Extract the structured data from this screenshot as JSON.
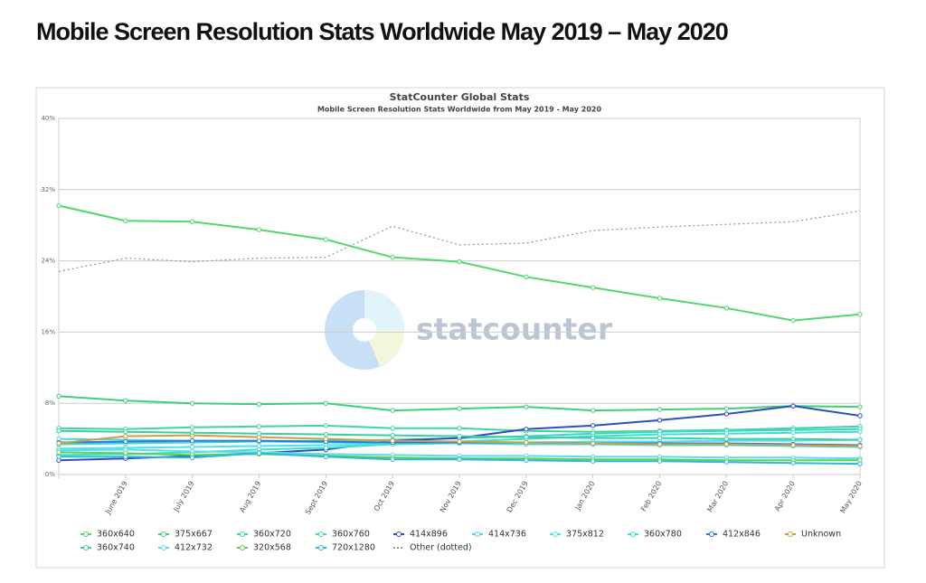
{
  "page_title": "Mobile Screen Resolution Stats Worldwide May 2019 – May 2020",
  "chart_data": {
    "type": "line",
    "title": "StatCounter Global Stats",
    "subtitle": "Mobile Screen Resolution Stats Worldwide from May 2019 - May 2020",
    "watermark": "statcounter",
    "categories": [
      null,
      "June 2019",
      "July 2019",
      "Aug 2019",
      "Sept 2019",
      "Oct 2019",
      "Nov 2019",
      "Dec 2019",
      "Jan 2020",
      "Feb 2020",
      "Mar 2020",
      "Apr 2020",
      "May 2020"
    ],
    "ylim": [
      0,
      40
    ],
    "yticks": [
      {
        "value": 0,
        "label": "0%"
      },
      {
        "value": 8,
        "label": "8%"
      },
      {
        "value": 16,
        "label": "16%"
      },
      {
        "value": 24,
        "label": "24%"
      },
      {
        "value": 32,
        "label": "32%"
      },
      {
        "value": 40,
        "label": "40%"
      }
    ],
    "grid": true,
    "legend": "bottom",
    "series": [
      {
        "name": "360x640",
        "color": "#4fd86c",
        "values": [
          30.2,
          28.5,
          28.4,
          27.5,
          26.4,
          24.4,
          23.9,
          22.2,
          21.0,
          19.8,
          18.7,
          17.3,
          18.0
        ]
      },
      {
        "name": "375x667",
        "color": "#3fcf7a",
        "values": [
          8.8,
          8.3,
          8.0,
          7.9,
          8.0,
          7.2,
          7.4,
          7.6,
          7.2,
          7.3,
          7.4,
          7.7,
          7.6
        ]
      },
      {
        "name": "360x720",
        "color": "#40d4a0",
        "values": [
          5.2,
          5.1,
          5.3,
          5.4,
          5.5,
          5.2,
          5.2,
          4.9,
          4.8,
          4.9,
          5.0,
          5.2,
          5.4
        ]
      },
      {
        "name": "360x760",
        "color": "#3fd6c4",
        "values": [
          3.4,
          3.5,
          3.6,
          3.7,
          3.8,
          3.9,
          4.1,
          4.3,
          4.6,
          4.8,
          4.9,
          5.0,
          5.1
        ]
      },
      {
        "name": "414x896",
        "color": "#2f4fc0",
        "values": [
          1.6,
          1.8,
          2.1,
          2.4,
          2.8,
          3.8,
          4.1,
          5.1,
          5.5,
          6.1,
          6.8,
          7.7,
          6.6
        ]
      },
      {
        "name": "414x736",
        "color": "#45d8e8",
        "values": [
          4.0,
          3.9,
          3.8,
          3.7,
          3.6,
          3.5,
          3.5,
          3.4,
          3.4,
          3.3,
          3.3,
          3.2,
          3.1
        ]
      },
      {
        "name": "375x812",
        "color": "#4ce0f0",
        "values": [
          2.9,
          3.0,
          3.1,
          3.2,
          3.3,
          3.4,
          3.5,
          3.6,
          3.7,
          3.7,
          3.8,
          3.8,
          3.9
        ]
      },
      {
        "name": "360x780",
        "color": "#3ee0c8",
        "values": [
          2.2,
          2.3,
          2.5,
          2.8,
          3.0,
          3.4,
          3.7,
          4.0,
          4.3,
          4.5,
          4.6,
          4.7,
          4.8
        ]
      },
      {
        "name": "412x846",
        "color": "#2b78e0",
        "values": [
          3.6,
          3.7,
          3.8,
          3.8,
          3.7,
          3.6,
          3.6,
          3.6,
          3.5,
          3.5,
          3.5,
          3.4,
          3.3
        ]
      },
      {
        "name": "Unknown",
        "color": "#c8a040",
        "values": [
          3.5,
          4.3,
          4.4,
          4.2,
          4.0,
          3.8,
          3.7,
          3.6,
          3.5,
          3.4,
          3.4,
          3.3,
          3.2
        ]
      },
      {
        "name": "360x740",
        "color": "#38cfa8",
        "values": [
          4.9,
          4.8,
          4.7,
          4.6,
          4.5,
          4.4,
          4.3,
          4.2,
          4.1,
          4.1,
          4.0,
          4.0,
          3.9
        ]
      },
      {
        "name": "412x732",
        "color": "#58dcf4",
        "values": [
          2.7,
          2.8,
          2.6,
          2.5,
          2.3,
          2.2,
          2.1,
          2.1,
          2.0,
          2.0,
          1.9,
          1.9,
          1.8
        ]
      },
      {
        "name": "320x568",
        "color": "#5cd24c",
        "values": [
          2.5,
          2.4,
          2.2,
          2.3,
          2.1,
          1.9,
          1.8,
          1.8,
          1.7,
          1.7,
          1.6,
          1.6,
          1.6
        ]
      },
      {
        "name": "720x1280",
        "color": "#2fb8d8",
        "values": [
          2.0,
          2.0,
          1.9,
          2.4,
          2.0,
          1.7,
          1.7,
          1.6,
          1.5,
          1.5,
          1.4,
          1.3,
          1.2
        ]
      },
      {
        "name": "Other (dotted)",
        "color": "#999999",
        "dotted": true,
        "values": [
          22.8,
          24.3,
          23.9,
          24.3,
          24.4,
          27.9,
          25.8,
          26.0,
          27.4,
          27.8,
          28.1,
          28.4,
          29.6
        ]
      }
    ]
  }
}
